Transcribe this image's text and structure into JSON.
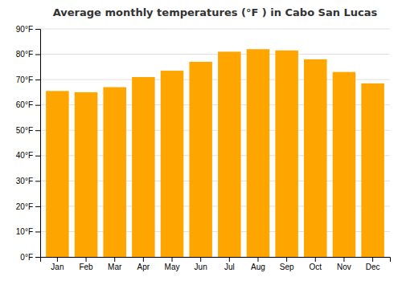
{
  "chart_data": {
    "type": "bar",
    "title": "Average monthly temperatures (°F ) in Cabo San Lucas",
    "categories": [
      "Jan",
      "Feb",
      "Mar",
      "Apr",
      "May",
      "Jun",
      "Jul",
      "Aug",
      "Sep",
      "Oct",
      "Nov",
      "Dec"
    ],
    "values": [
      65.5,
      65.0,
      67.0,
      71.0,
      73.5,
      77.0,
      81.0,
      82.0,
      81.5,
      78.0,
      73.0,
      68.5
    ],
    "color": "#FFA500",
    "ylim": [
      0,
      90
    ],
    "yticks": [
      {
        "value": 0,
        "label": "0°F"
      },
      {
        "value": 10,
        "label": "10°F"
      },
      {
        "value": 20,
        "label": "20°F"
      },
      {
        "value": 30,
        "label": "30°F"
      },
      {
        "value": 40,
        "label": "40°F"
      },
      {
        "value": 50,
        "label": "50°F"
      },
      {
        "value": 60,
        "label": "60°F"
      },
      {
        "value": 70,
        "label": "70°F"
      },
      {
        "value": 80,
        "label": "80°F"
      },
      {
        "value": 90,
        "label": "90°F"
      }
    ],
    "grid": true
  }
}
